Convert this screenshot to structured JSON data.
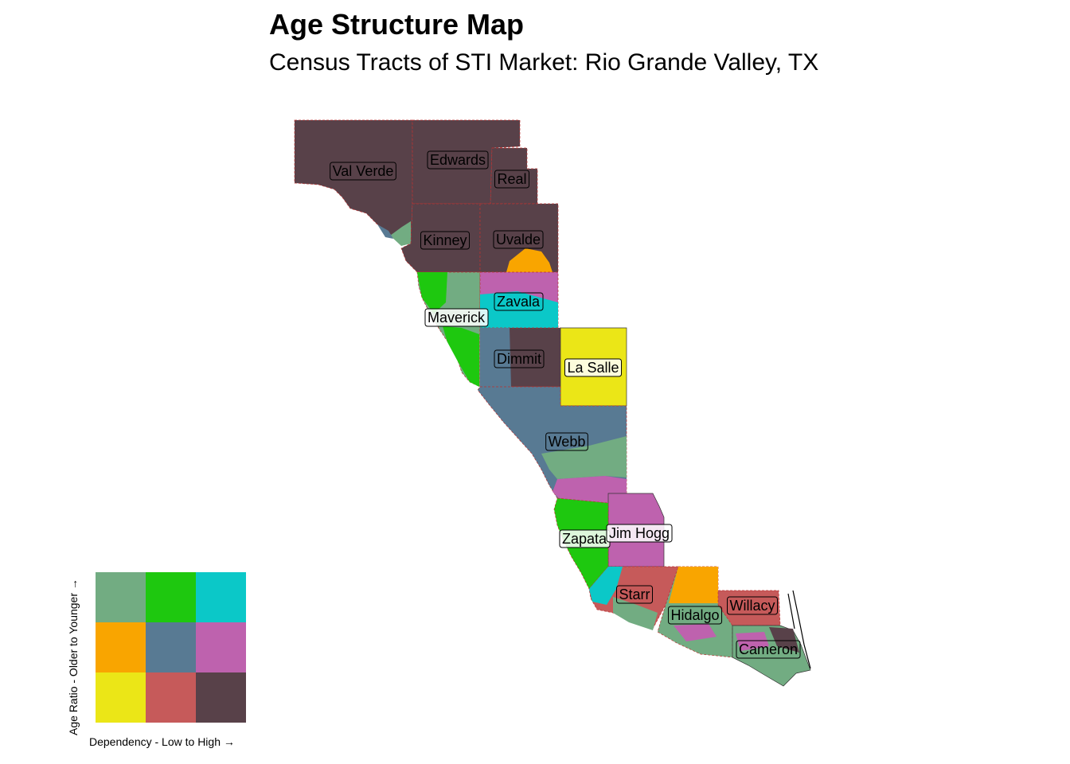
{
  "title": "Age Structure Map",
  "subtitle": "Census Tracts of STI Market: Rio Grande Valley, TX",
  "palette": {
    "c11": "#72ac82",
    "c21": "#1ec80f",
    "c31": "#0bc8c8",
    "c12": "#f9a500",
    "c22": "#587a93",
    "c32": "#be62ae",
    "c13": "#ebe617",
    "c23": "#c65a5a",
    "c33": "#584149"
  },
  "counties": [
    {
      "name": "Val Verde"
    },
    {
      "name": "Edwards"
    },
    {
      "name": "Real"
    },
    {
      "name": "Kinney"
    },
    {
      "name": "Uvalde"
    },
    {
      "name": "Zavala"
    },
    {
      "name": "Maverick"
    },
    {
      "name": "Dimmit"
    },
    {
      "name": "La Salle"
    },
    {
      "name": "Webb"
    },
    {
      "name": "Zapata"
    },
    {
      "name": "Jim Hogg"
    },
    {
      "name": "Starr"
    },
    {
      "name": "Hidalgo"
    },
    {
      "name": "Willacy"
    },
    {
      "name": "Cameron"
    }
  ],
  "legend": {
    "y_label": "Age Ratio - Older to Younger →",
    "x_label": "Dependency - Low to High →"
  }
}
